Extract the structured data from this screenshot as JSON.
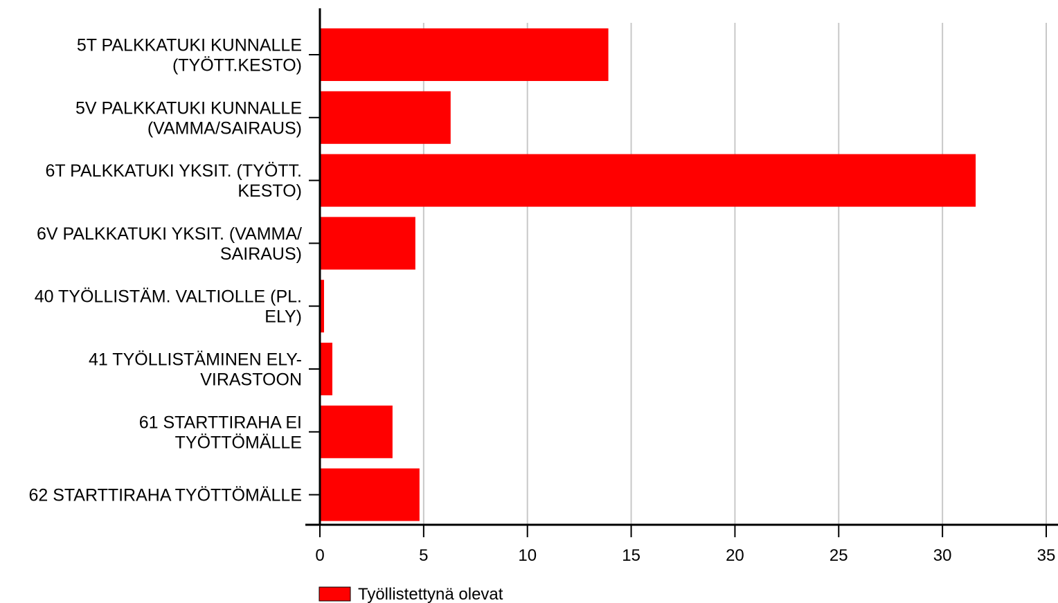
{
  "chart_data": {
    "type": "bar",
    "orientation": "horizontal",
    "categories": [
      [
        "5T PALKKATUKI KUNNALLE",
        "(TYÖTT.KESTO)"
      ],
      [
        "5V PALKKATUKI KUNNALLE",
        "(VAMMA/SAIRAUS)"
      ],
      [
        "6T PALKKATUKI YKSIT. (TYÖTT.",
        "KESTO)"
      ],
      [
        "6V PALKKATUKI YKSIT. (VAMMA/",
        "SAIRAUS)"
      ],
      [
        "40 TYÖLLISTÄM. VALTIOLLE (PL.",
        "ELY)"
      ],
      [
        "41 TYÖLLISTÄMINEN ELY-",
        "VIRASTOON"
      ],
      [
        "61 STARTTIRAHA EI",
        "TYÖTTÖMÄLLE"
      ],
      [
        "62 STARTTIRAHA TYÖTTÖMÄLLE"
      ]
    ],
    "series": [
      {
        "name": "Työllistettynä olevat",
        "color": "#ff0000",
        "values": [
          13.9,
          6.3,
          31.6,
          4.6,
          0.2,
          0.6,
          3.5,
          4.8
        ]
      }
    ],
    "xlim": [
      0,
      35
    ],
    "xticks": [
      "0",
      "5",
      "10",
      "15",
      "20",
      "25",
      "30",
      "35"
    ],
    "grid": true,
    "legend": "bottom-left"
  }
}
